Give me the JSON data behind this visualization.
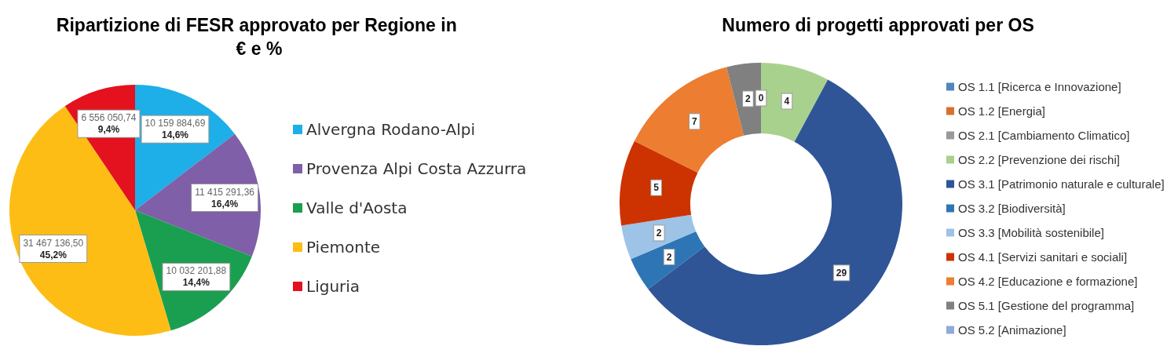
{
  "chart_data": [
    {
      "type": "pie",
      "title": "Ripartizione di FESR approvato per Regione in € e %",
      "categories": [
        "Alvergna Rodano-Alpi",
        "Provenza Alpi Costa Azzurra",
        "Valle d'Aosta",
        "Piemonte",
        "Liguria"
      ],
      "values": [
        10159884.69,
        11415291.36,
        10032201.88,
        31467136.5,
        6556050.74
      ],
      "colors": [
        "#1eaee8",
        "#7f5fa8",
        "#1a9f50",
        "#fdbd14",
        "#e3121e"
      ],
      "value_labels": [
        "10 159 884,69\n14,6%",
        "11 415 291,36\n16,4%",
        "10 032 201,88\n14,4%",
        "31 467 136,50\n45,2%",
        "6 556 050,74\n9,4%"
      ],
      "legend": "right"
    },
    {
      "type": "donut",
      "title": "Numero di progetti approvati per OS",
      "categories": [
        "OS 1.1 [Ricerca e Innovazione]",
        "OS 1.2 [Energia]",
        "OS 2.1 [Cambiamento Climatico]",
        "OS 2.2 [Prevenzione dei rischi]",
        "OS 3.1 [Patrimonio naturale e culturale]",
        "OS 3.2 [Biodiversità]",
        "OS 3.3 [Mobilità sostenibile]",
        "OS 4.1 [Servizi sanitari e sociali]",
        "OS 4.2 [Educazione e formazione]",
        "OS 5.1 [Gestione del programma]",
        "OS 5.2 [Animazione]"
      ],
      "values": [
        0,
        0,
        0,
        4,
        29,
        2,
        2,
        5,
        7,
        2,
        0
      ],
      "colors": [
        "#4f86bf",
        "#d9702c",
        "#999999",
        "#a9d18e",
        "#2f5597",
        "#2e75b6",
        "#9dc3e6",
        "#cc3300",
        "#ed7d31",
        "#808080",
        "#8faadc"
      ],
      "value_labels": [
        null,
        null,
        null,
        "4",
        "29",
        "2",
        "2",
        "5",
        "7",
        "2",
        "0"
      ],
      "legend": "right"
    }
  ]
}
